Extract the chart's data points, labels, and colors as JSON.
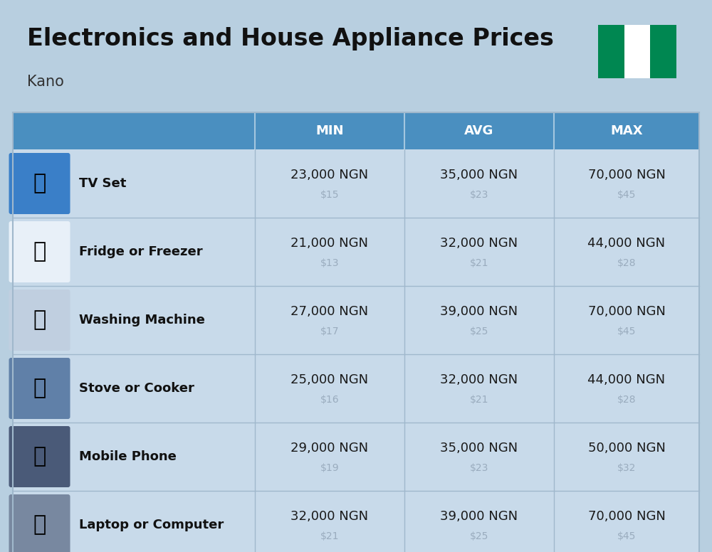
{
  "title": "Electronics and House Appliance Prices",
  "subtitle": "Kano",
  "bg_color": "#b8cfe0",
  "header_color": "#4a8fc0",
  "header_text_color": "#ffffff",
  "row_bg_color": "#c8daea",
  "divider_color": "#a0b8cc",
  "usd_color": "#9aacbe",
  "ngn_color": "#1a1a1a",
  "name_color": "#111111",
  "columns": [
    "MIN",
    "AVG",
    "MAX"
  ],
  "items": [
    {
      "name": "TV Set",
      "min_ngn": "23,000 NGN",
      "min_usd": "$15",
      "avg_ngn": "35,000 NGN",
      "avg_usd": "$23",
      "max_ngn": "70,000 NGN",
      "max_usd": "$45"
    },
    {
      "name": "Fridge or Freezer",
      "min_ngn": "21,000 NGN",
      "min_usd": "$13",
      "avg_ngn": "32,000 NGN",
      "avg_usd": "$21",
      "max_ngn": "44,000 NGN",
      "max_usd": "$28"
    },
    {
      "name": "Washing Machine",
      "min_ngn": "27,000 NGN",
      "min_usd": "$17",
      "avg_ngn": "39,000 NGN",
      "avg_usd": "$25",
      "max_ngn": "70,000 NGN",
      "max_usd": "$45"
    },
    {
      "name": "Stove or Cooker",
      "min_ngn": "25,000 NGN",
      "min_usd": "$16",
      "avg_ngn": "32,000 NGN",
      "avg_usd": "$21",
      "max_ngn": "44,000 NGN",
      "max_usd": "$28"
    },
    {
      "name": "Mobile Phone",
      "min_ngn": "29,000 NGN",
      "min_usd": "$19",
      "avg_ngn": "35,000 NGN",
      "avg_usd": "$23",
      "max_ngn": "50,000 NGN",
      "max_usd": "$32"
    },
    {
      "name": "Laptop or Computer",
      "min_ngn": "32,000 NGN",
      "min_usd": "$21",
      "avg_ngn": "39,000 NGN",
      "avg_usd": "$25",
      "max_ngn": "70,000 NGN",
      "max_usd": "$45"
    }
  ],
  "nigeria_flag_colors": [
    "#008751",
    "#ffffff",
    "#008751"
  ],
  "icon_bg_colors": [
    "#3a7fc8",
    "#e8f0f8",
    "#c0cfe0",
    "#6080a8",
    "#4a5a78",
    "#7888a0"
  ],
  "title_fontsize": 24,
  "subtitle_fontsize": 15,
  "header_fontsize": 13,
  "name_fontsize": 13,
  "ngn_fontsize": 13,
  "usd_fontsize": 10
}
